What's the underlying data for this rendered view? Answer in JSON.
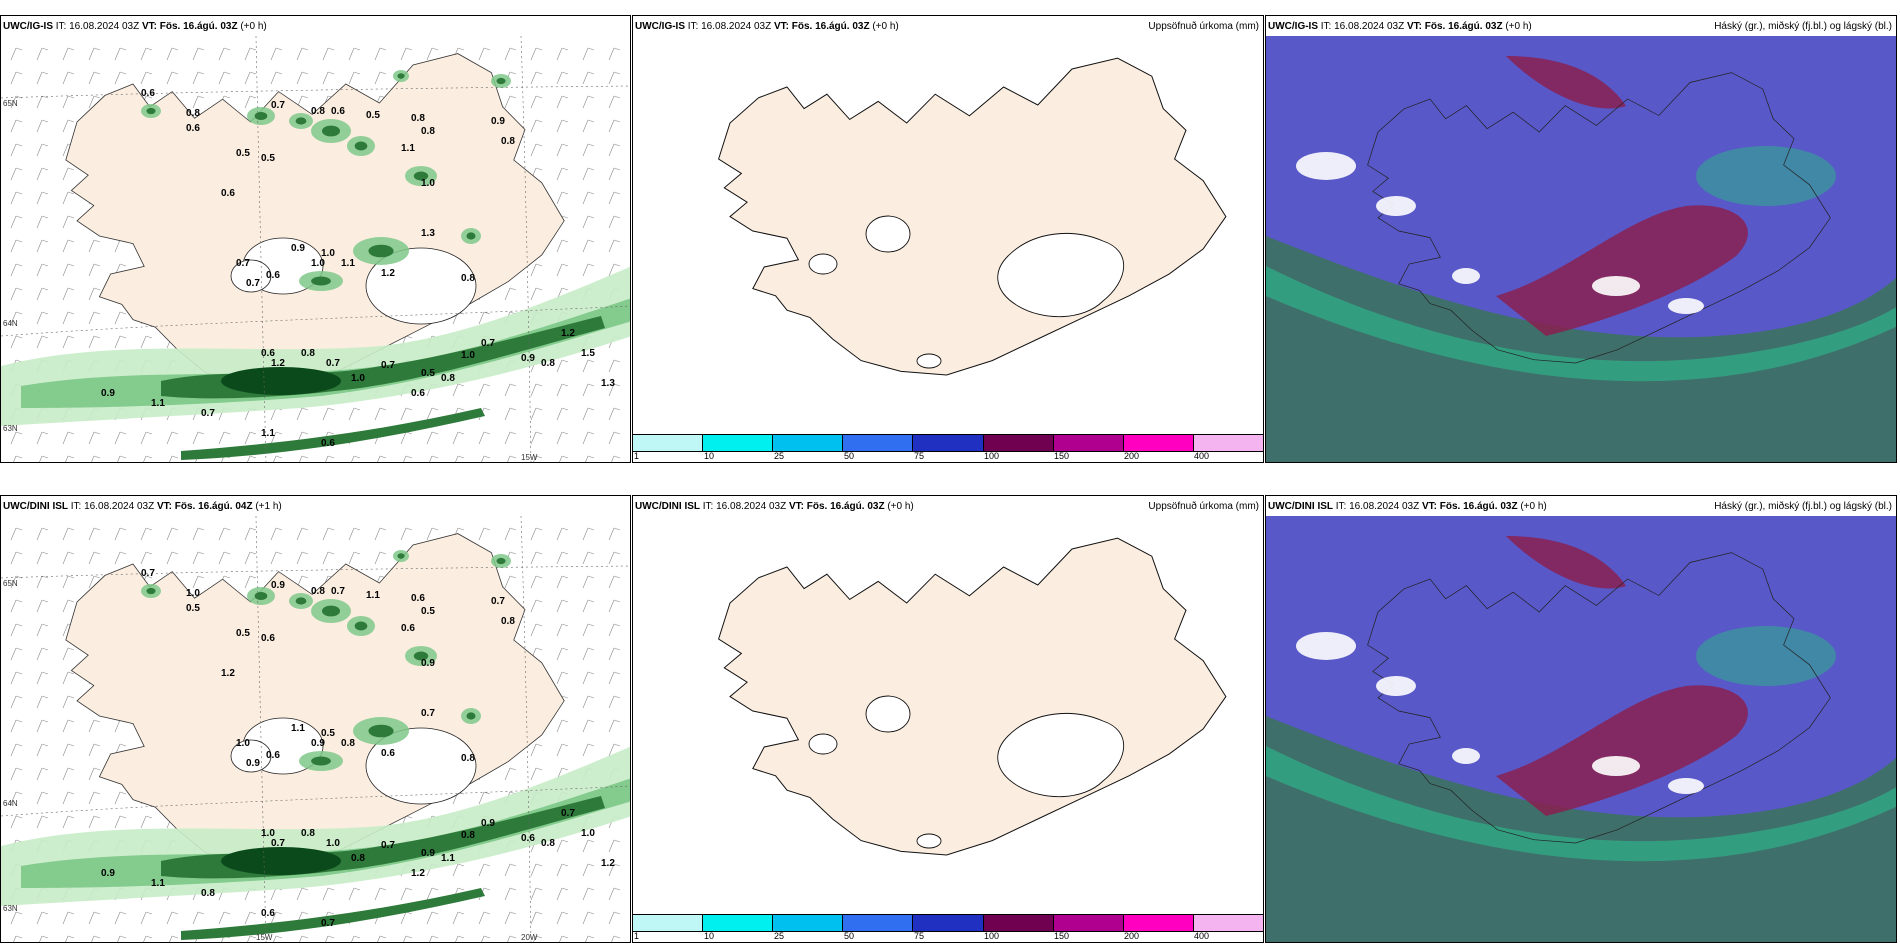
{
  "panels": [
    {
      "model": "UWC/IG-IS",
      "it": "IT: 16.08.2024 03Z",
      "vt_label": "VT:",
      "vt_value": "Fös. 16.ágú. 03Z",
      "lead": "(+0 h)",
      "right_title": "",
      "labels": [
        "0.6",
        "0.8",
        "0.6",
        "0.5",
        "0.7",
        "0.8",
        "0.6",
        "0.5",
        "0.8",
        "0.8",
        "1.1",
        "0.9",
        "0.8",
        "1.0",
        "0.6",
        "0.5",
        "0.7",
        "0.9",
        "1.0",
        "1.1",
        "1.2",
        "1.3",
        "0.8",
        "1.0",
        "0.6",
        "0.7",
        "0.6",
        "1.2",
        "0.8",
        "0.7",
        "1.0",
        "0.7",
        "0.5",
        "0.8",
        "0.6",
        "1.0",
        "0.7",
        "0.9",
        "1.2",
        "1.5",
        "0.8",
        "0.9",
        "1.1",
        "0.7",
        "1.1",
        "0.6",
        "1.3"
      ],
      "axis": [
        "65N",
        "64N",
        "63N",
        "15W"
      ]
    },
    {
      "model": "UWC/IG-IS",
      "it": "IT: 16.08.2024 03Z",
      "vt_label": "VT:",
      "vt_value": "Fös. 16.ágú. 03Z",
      "lead": "(+0 h)",
      "right_title": "Uppsöfnuð úrkoma (mm)"
    },
    {
      "model": "UWC/IG-IS",
      "it": "IT: 16.08.2024 03Z",
      "vt_label": "VT:",
      "vt_value": "Fös. 16.ágú. 03Z",
      "lead": "(+0 h)",
      "right_title": "Háský (gr.), miðský (fj.bl.) og lágský (bl.)"
    },
    {
      "model": "UWC/DINI ISL",
      "it": "IT: 16.08.2024 03Z",
      "vt_label": "VT:",
      "vt_value": "Fös. 16.ágú. 04Z",
      "lead": "(+1 h)",
      "right_title": "",
      "labels": [
        "0.7",
        "1.0",
        "0.5",
        "0.6",
        "0.9",
        "0.8",
        "0.7",
        "1.1",
        "0.6",
        "0.5",
        "0.6",
        "0.7",
        "0.8",
        "0.9",
        "1.2",
        "0.5",
        "1.0",
        "1.1",
        "0.9",
        "0.8",
        "0.6",
        "0.7",
        "0.8",
        "0.5",
        "0.6",
        "0.9",
        "1.0",
        "0.7",
        "0.8",
        "1.0",
        "0.8",
        "0.7",
        "0.9",
        "1.1",
        "1.2",
        "0.8",
        "0.9",
        "0.6",
        "0.7",
        "1.0",
        "0.8",
        "0.9",
        "1.1",
        "0.8",
        "0.6",
        "0.7",
        "1.2"
      ],
      "axis": [
        "65N",
        "64N",
        "63N",
        "20W",
        "15W"
      ]
    },
    {
      "model": "UWC/DINI ISL",
      "it": "IT: 16.08.2024 03Z",
      "vt_label": "VT:",
      "vt_value": "Fös. 16.ágú. 03Z",
      "lead": "(+0 h)",
      "right_title": "Uppsöfnuð úrkoma (mm)"
    },
    {
      "model": "UWC/DINI ISL",
      "it": "IT: 16.08.2024 03Z",
      "vt_label": "VT:",
      "vt_value": "Fös. 16.ágú. 03Z",
      "lead": "(+0 h)",
      "right_title": "Háský (gr.), miðský (fj.bl.) og lágský (bl.)"
    }
  ],
  "colorbar": {
    "ticks": [
      "1",
      "10",
      "25",
      "50",
      "75",
      "100",
      "150",
      "200",
      "400"
    ],
    "colors": [
      "#bff7f7",
      "#00f0f0",
      "#00c0f0",
      "#3070f0",
      "#2030c0",
      "#700050",
      "#b00090",
      "#ff00c0",
      "#f4b4f0"
    ]
  },
  "colors": {
    "land": "#fbeee0",
    "precip_light": "#c8ecc8",
    "precip_mid": "#7fc88a",
    "precip_dark": "#2e7a3a",
    "precip_darkest": "#0b4a1a",
    "high_cloud": "#707070",
    "mid_cloud": "#8a2050",
    "low_cloud": "#5858c8"
  }
}
